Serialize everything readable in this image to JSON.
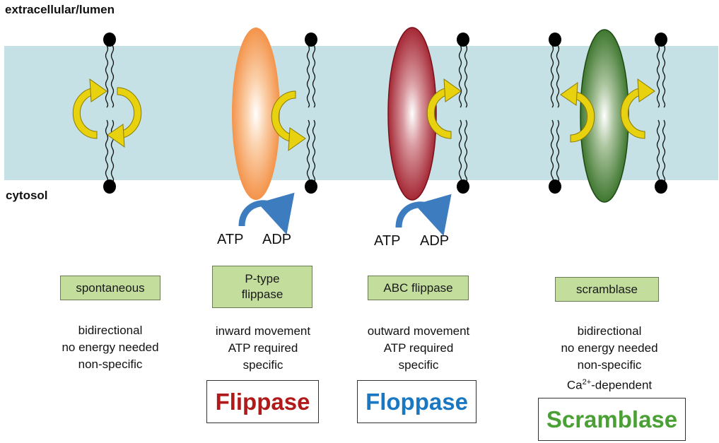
{
  "labels": {
    "extracellular": "extracellular/lumen",
    "cytosol": "cytosol"
  },
  "atp_adp": {
    "atp": "ATP",
    "adp": "ADP"
  },
  "types": [
    {
      "label": "spontaneous"
    },
    {
      "label": "P-type flippase"
    },
    {
      "label": "ABC flippase"
    },
    {
      "label": "scramblase"
    }
  ],
  "descriptions": [
    {
      "line1": "bidirectional",
      "line2": "no energy needed",
      "line3": "non-specific"
    },
    {
      "line1": "inward movement",
      "line2": "ATP required",
      "line3": "specific"
    },
    {
      "line1": "outward movement",
      "line2": "ATP required",
      "line3": "specific"
    },
    {
      "line1": "bidirectional",
      "line2": "no energy needed",
      "line3": "non-specific",
      "line4_base": "Ca",
      "line4_sup": "2+",
      "line4_rest": "-dependent"
    }
  ],
  "names": [
    {
      "text": "Flippase",
      "color": "#b01a1a"
    },
    {
      "text": "Floppase",
      "color": "#1a78c2"
    },
    {
      "text": "Scramblase",
      "color": "#4aa035"
    }
  ],
  "colors": {
    "membrane": "#c6e1e5",
    "lipid_head": "#000000",
    "arrow_fill": "#e8d210",
    "arrow_stroke": "#8a7a00",
    "atp_arrow": "#3d7cbf",
    "type_box": "#c3dd9d",
    "p_type_protein": "#f2893a",
    "abc_protein": "#9c1624",
    "scramblase_protein": "#2e6b1f"
  }
}
